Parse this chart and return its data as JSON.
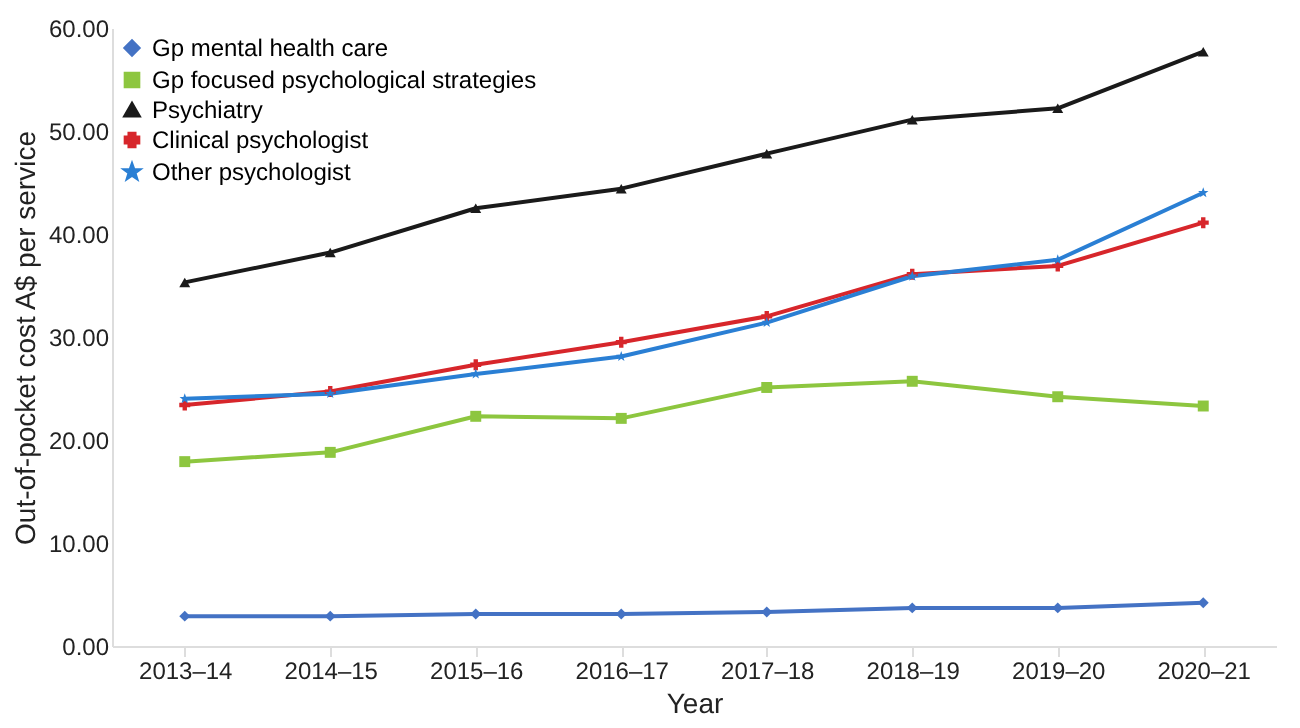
{
  "chart_data": {
    "type": "line",
    "xlabel": "Year",
    "ylabel": "Out-of-pocket cost A$ per service",
    "categories": [
      "2013–14",
      "2014–15",
      "2015–16",
      "2016–17",
      "2017–18",
      "2018–19",
      "2019–20",
      "2020–21"
    ],
    "series": [
      {
        "name": "Gp mental health care",
        "color": "#4472c4",
        "marker": "diamond",
        "values": [
          2.9,
          2.9,
          3.1,
          3.1,
          3.3,
          3.7,
          3.7,
          4.2
        ]
      },
      {
        "name": "Gp focused psychological strategies",
        "color": "#8dc63f",
        "marker": "square",
        "values": [
          17.9,
          18.8,
          22.3,
          22.1,
          25.1,
          25.7,
          24.2,
          23.3
        ]
      },
      {
        "name": "Psychiatry",
        "color": "#1a1a1a",
        "marker": "triangle",
        "values": [
          35.3,
          38.2,
          42.5,
          44.4,
          47.8,
          51.1,
          52.2,
          57.7
        ]
      },
      {
        "name": "Clinical psychologist",
        "color": "#d7262b",
        "marker": "cross",
        "values": [
          23.4,
          24.7,
          27.3,
          29.5,
          32.0,
          36.1,
          36.9,
          41.1
        ]
      },
      {
        "name": "Other psychologist",
        "color": "#2a7fd4",
        "marker": "star",
        "values": [
          24.0,
          24.5,
          26.4,
          28.1,
          31.4,
          35.9,
          37.5,
          44.0
        ]
      }
    ],
    "ylim": [
      0,
      60
    ],
    "yticks": [
      {
        "value": 0,
        "label": "0.00"
      },
      {
        "value": 10,
        "label": "10.00"
      },
      {
        "value": 20,
        "label": "20.00"
      },
      {
        "value": 30,
        "label": "30.00"
      },
      {
        "value": 40,
        "label": "40.00"
      },
      {
        "value": 50,
        "label": "50.00"
      },
      {
        "value": 60,
        "label": "60.00"
      }
    ],
    "grid": false,
    "legend": "top left",
    "line_style": "solid"
  }
}
